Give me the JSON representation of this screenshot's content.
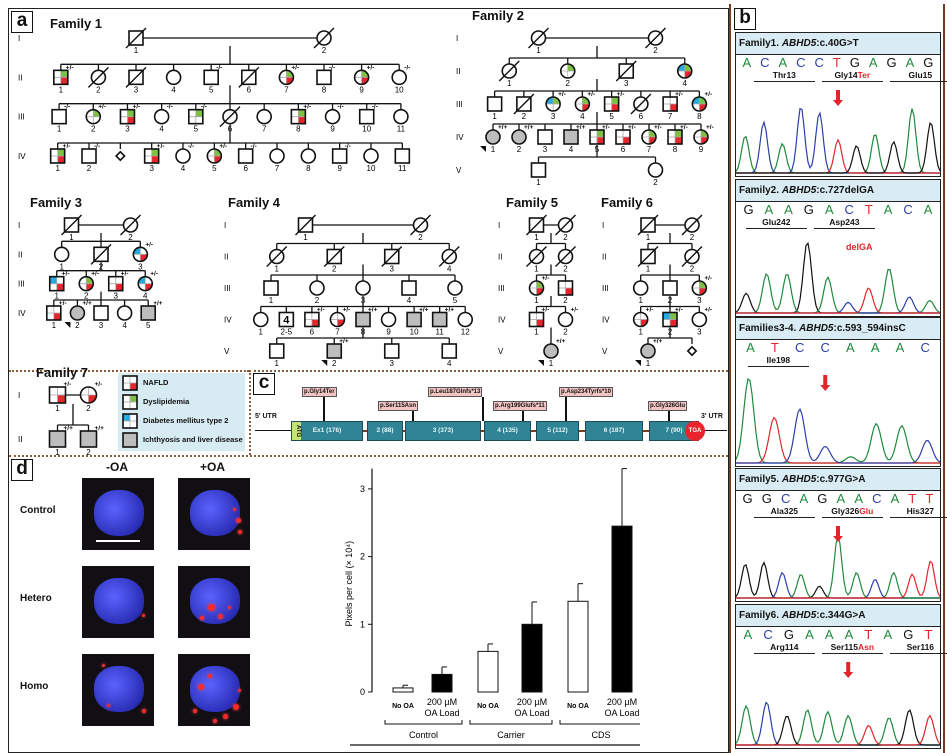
{
  "panels": {
    "a": "a",
    "b": "b",
    "c": "c",
    "d": "d"
  },
  "generation_labels": [
    "I",
    "II",
    "III",
    "IV",
    "V"
  ],
  "colors": {
    "nafld": "#e8242c",
    "dyslipidemia": "#7dc142",
    "diabetes": "#27aae1",
    "ichthyosis": "#bdbdbd",
    "exon": "#2f8595",
    "legend_bg": "#d7ebf2"
  },
  "families": [
    {
      "title": "Family 1",
      "generations": [
        [
          {
            "n": "1",
            "s": "m",
            "d": 1
          },
          {
            "n": "2",
            "s": "f",
            "d": 1
          }
        ],
        [
          {
            "n": "1",
            "s": "m",
            "q": "gr",
            "gt": "+/-"
          },
          {
            "n": "2",
            "s": "f",
            "d": 1
          },
          {
            "n": "3",
            "s": "m",
            "d": 1
          },
          {
            "n": "4",
            "s": "f"
          },
          {
            "n": "5",
            "s": "m",
            "gt": "-/-"
          },
          {
            "n": "6",
            "s": "m",
            "d": 1
          },
          {
            "n": "7",
            "s": "f",
            "q": "gr",
            "gt": "+/-"
          },
          {
            "n": "8",
            "s": "m",
            "gt": "-/-"
          },
          {
            "n": "9",
            "s": "f",
            "q": "gr",
            "gt": "+/-"
          },
          {
            "n": "10",
            "s": "f",
            "gt": "-/-"
          }
        ],
        [
          {
            "n": "1",
            "s": "m",
            "gt": "-/-"
          },
          {
            "n": "2",
            "s": "f",
            "q": "g",
            "gt": "+/-"
          },
          {
            "n": "3",
            "s": "m",
            "q": "gr",
            "gt": "+/-"
          },
          {
            "n": "4",
            "s": "f",
            "gt": "-/-"
          },
          {
            "n": "5",
            "s": "m",
            "q": "g",
            "gt": "-/-"
          },
          {
            "n": "6",
            "s": "f",
            "d": 1
          },
          {
            "n": "7",
            "s": "f"
          },
          {
            "n": "8",
            "s": "m",
            "q": "gr",
            "gt": "+/-"
          },
          {
            "n": "9",
            "s": "f",
            "gt": "-/-"
          },
          {
            "n": "10",
            "s": "m",
            "gt": "-/-"
          },
          {
            "n": "11",
            "s": "f"
          }
        ],
        [
          {
            "n": "1",
            "s": "m",
            "q": "gr",
            "gt": "+/-"
          },
          {
            "n": "2",
            "s": "m",
            "gt": "-/-"
          },
          {
            "n": "",
            "s": "u"
          },
          {
            "n": "3",
            "s": "m",
            "q": "gr",
            "gt": "+/-"
          },
          {
            "n": "4",
            "s": "f",
            "gt": "-/-"
          },
          {
            "n": "5",
            "s": "f",
            "q": "gr",
            "gt": "+/-"
          },
          {
            "n": "6",
            "s": "m",
            "gt": "-/-"
          },
          {
            "n": "7",
            "s": "f"
          },
          {
            "n": "8",
            "s": "f"
          },
          {
            "n": "9",
            "s": "m",
            "gt": "-/-"
          },
          {
            "n": "10",
            "s": "f"
          },
          {
            "n": "11",
            "s": "m"
          }
        ]
      ]
    },
    {
      "title": "Family 2",
      "generations": [
        [
          {
            "n": "1",
            "s": "f",
            "d": 1
          },
          {
            "n": "2",
            "s": "f",
            "d": 1
          }
        ],
        [
          {
            "n": "1",
            "s": "f",
            "d": 1
          },
          {
            "n": "2",
            "s": "f",
            "q": "g"
          },
          {
            "n": "3",
            "s": "m",
            "d": 1
          },
          {
            "n": "4",
            "s": "f",
            "q": "bgr"
          }
        ],
        [
          {
            "n": "1",
            "s": "m"
          },
          {
            "n": "2",
            "s": "m",
            "d": 1
          },
          {
            "n": "3",
            "s": "f",
            "q": "bg",
            "gt": "+/-"
          },
          {
            "n": "4",
            "s": "f",
            "q": "gr",
            "gt": "+/-"
          },
          {
            "n": "5",
            "s": "m",
            "q": "gr",
            "gt": "+/-"
          },
          {
            "n": "6",
            "s": "f",
            "d": 1
          },
          {
            "n": "7",
            "s": "m",
            "q": "r",
            "gt": "+/-"
          },
          {
            "n": "8",
            "s": "f",
            "q": "bgr",
            "gt": "+/-"
          }
        ],
        [
          {
            "n": "1",
            "s": "f",
            "a": 1,
            "gt": "+/+",
            "p": 1
          },
          {
            "n": "2",
            "s": "f",
            "a": 1,
            "gt": "+/+"
          },
          {
            "n": "3",
            "s": "m"
          },
          {
            "n": "4",
            "s": "m",
            "a": 1,
            "gt": "+/+"
          },
          {
            "n": "5",
            "s": "m",
            "q": "gr",
            "gt": "+/-"
          },
          {
            "n": "6",
            "s": "m",
            "q": "r",
            "gt": "+/-"
          },
          {
            "n": "7",
            "s": "f",
            "q": "gr",
            "gt": "+/-"
          },
          {
            "n": "8",
            "s": "m",
            "q": "gr",
            "gt": "+/-"
          },
          {
            "n": "9",
            "s": "f",
            "q": "gr",
            "gt": "+/-"
          }
        ],
        [
          {
            "n": "1",
            "s": "m"
          },
          {
            "n": "2",
            "s": "f"
          }
        ]
      ]
    },
    {
      "title": "Family 3",
      "generations": [
        [
          {
            "n": "1",
            "s": "m",
            "d": 1
          },
          {
            "n": "2",
            "s": "f",
            "d": 1
          }
        ],
        [
          {
            "n": "1",
            "s": "f"
          },
          {
            "n": "2",
            "s": "m",
            "d": 1
          },
          {
            "n": "3",
            "s": "f",
            "q": "br",
            "gt": "+/-"
          }
        ],
        [
          {
            "n": "1",
            "s": "m",
            "q": "br",
            "gt": "+/-"
          },
          {
            "n": "2",
            "s": "f",
            "q": "gr",
            "gt": "+/-"
          },
          {
            "n": "3",
            "s": "m",
            "q": "r",
            "gt": "+/-"
          },
          {
            "n": "4",
            "s": "f",
            "q": "br",
            "gt": "+/-"
          }
        ],
        [
          {
            "n": "1",
            "s": "m",
            "q": "r",
            "gt": "+/-"
          },
          {
            "n": "2",
            "s": "f",
            "a": 1,
            "gt": "+/+",
            "p": 1
          },
          {
            "n": "3",
            "s": "m"
          },
          {
            "n": "4",
            "s": "f"
          },
          {
            "n": "5",
            "s": "m",
            "a": 1,
            "gt": "+/+"
          }
        ]
      ]
    },
    {
      "title": "Family 4",
      "generations": [
        [
          {
            "n": "1",
            "s": "m",
            "d": 1
          },
          {
            "n": "2",
            "s": "f",
            "d": 1
          }
        ],
        [
          {
            "n": "1",
            "s": "f",
            "d": 1
          },
          {
            "n": "2",
            "s": "m",
            "d": 1
          },
          {
            "n": "3",
            "s": "m",
            "d": 1
          },
          {
            "n": "4",
            "s": "f",
            "d": 1
          }
        ],
        [
          {
            "n": "1",
            "s": "m"
          },
          {
            "n": "2",
            "s": "f"
          },
          {
            "n": "3",
            "s": "f"
          },
          {
            "n": "4",
            "s": "m"
          },
          {
            "n": "5",
            "s": "f"
          }
        ],
        [
          {
            "n": "1",
            "s": "f"
          },
          {
            "n": "2-5",
            "s": "m",
            "c": "4"
          },
          {
            "n": "6",
            "s": "m",
            "q": "r",
            "gt": "+/-"
          },
          {
            "n": "7",
            "s": "f",
            "q": "r",
            "gt": "+/-"
          },
          {
            "n": "8",
            "s": "m",
            "a": 1,
            "gt": "+/+"
          },
          {
            "n": "9",
            "s": "f"
          },
          {
            "n": "10",
            "s": "m",
            "a": 1,
            "gt": "+/+"
          },
          {
            "n": "11",
            "s": "m",
            "a": 1,
            "gt": "+/+"
          },
          {
            "n": "12",
            "s": "f"
          }
        ],
        [
          {
            "n": "1",
            "s": "m"
          },
          {
            "n": "2",
            "s": "m",
            "a": 1,
            "gt": "+/+",
            "p": 1
          },
          {
            "n": "3",
            "s": "m"
          },
          {
            "n": "4",
            "s": "m"
          }
        ]
      ]
    },
    {
      "title": "Family 5",
      "generations": [
        [
          {
            "n": "1",
            "s": "m",
            "d": 1
          },
          {
            "n": "2",
            "s": "f",
            "d": 1
          }
        ],
        [
          {
            "n": "1",
            "s": "f",
            "d": 1
          },
          {
            "n": "2",
            "s": "f",
            "d": 1
          }
        ],
        [
          {
            "n": "1",
            "s": "f",
            "q": "gr",
            "gt": "+/-"
          },
          {
            "n": "2",
            "s": "m",
            "q": "r"
          }
        ],
        [
          {
            "n": "1",
            "s": "m",
            "q": "r",
            "gt": "+/-"
          },
          {
            "n": "2",
            "s": "f",
            "gt": "+/-"
          }
        ],
        [
          {
            "n": "1",
            "s": "f",
            "a": 1,
            "gt": "+/+",
            "p": 1
          }
        ]
      ]
    },
    {
      "title": "Family 6",
      "generations": [
        [
          {
            "n": "1",
            "s": "m",
            "d": 1
          },
          {
            "n": "2",
            "s": "f",
            "d": 1
          }
        ],
        [
          {
            "n": "1",
            "s": "m",
            "d": 1
          },
          {
            "n": "2",
            "s": "f",
            "d": 1
          }
        ],
        [
          {
            "n": "1",
            "s": "f"
          },
          {
            "n": "2",
            "s": "m"
          },
          {
            "n": "3",
            "s": "f",
            "q": "gr",
            "gt": "+/-"
          }
        ],
        [
          {
            "n": "1",
            "s": "f",
            "q": "r",
            "gt": "+/-"
          },
          {
            "n": "2",
            "s": "m",
            "q": "bgr",
            "gt": "+/-"
          },
          {
            "n": "3",
            "s": "f",
            "gt": "+/-"
          }
        ],
        [
          {
            "n": "1",
            "s": "f",
            "a": 1,
            "gt": "+/+",
            "p": 1
          },
          {
            "n": "",
            "s": "u"
          }
        ]
      ]
    },
    {
      "title": "Family 7",
      "generations": [
        [
          {
            "n": "1",
            "s": "m",
            "q": "r",
            "gt": "+/-"
          },
          {
            "n": "2",
            "s": "f",
            "q": "r",
            "gt": "+/-"
          }
        ],
        [
          {
            "n": "1",
            "s": "m",
            "a": 1,
            "gt": "+/+"
          },
          {
            "n": "2",
            "s": "m",
            "a": 1,
            "gt": "+/+"
          }
        ]
      ]
    }
  ],
  "legend": [
    {
      "label": "NAFLD",
      "q": "r"
    },
    {
      "label": "Dyslipidemia",
      "q": "g"
    },
    {
      "label": "Diabetes mellitus type 2",
      "q": "b"
    },
    {
      "label": "Ichthyosis and liver disease",
      "q": "a"
    }
  ],
  "gene": {
    "utr5": "5' UTR",
    "utr3": "3' UTR",
    "start": "ATG",
    "stop": "TGA",
    "exons": [
      "Ex1 (176)",
      "2 (88)",
      "3 (373)",
      "4 (135)",
      "5 (112)",
      "6 (187)",
      "7 (90)"
    ],
    "mutations": [
      "p.Gly14Ter",
      "p.Ser115Asn",
      "p.Leu187Glnfs*13",
      "p.Arg199Glufs*11",
      "p.Asp234Tyrfs*10",
      "p.Gly326Glu"
    ]
  },
  "sequencing": [
    {
      "family": "Family1.",
      "gene": "ABHD5",
      "variant": ":c.40G>T",
      "bases": "ACACCTGAGAG",
      "mutbase": 5,
      "codons": [
        {
          "text": "Thr13"
        },
        {
          "text": "Gly14",
          "mut": "Ter"
        },
        {
          "text": "Glu15"
        }
      ]
    },
    {
      "family": "Family2.",
      "gene": "ABHD5",
      "variant": ":c.727delGA",
      "bases": "GAAGACTACA",
      "codons": [
        {
          "text": "Glu242"
        },
        {
          "text": "Asp243"
        }
      ],
      "annotation": "delGA"
    },
    {
      "family": "Families3-4.",
      "gene": "ABHD5",
      "variant": ":c.593_594insC",
      "bases": "ATCCAAAC",
      "codons": [
        {
          "text": "Ile198"
        }
      ]
    },
    {
      "family": "Family5.",
      "gene": "ABHD5",
      "variant": ":c.977G>A",
      "bases": "GGCAGAACATT",
      "codons": [
        {
          "text": "Ala325"
        },
        {
          "text": "Gly326",
          "mut": "Glu"
        },
        {
          "text": "His327"
        }
      ]
    },
    {
      "family": "Family6.",
      "gene": "ABHD5",
      "variant": ":c.344G>A",
      "bases": "ACGAAATAGT",
      "codons": [
        {
          "text": "Arg114"
        },
        {
          "text": "Ser115",
          "mut": "Asn"
        },
        {
          "text": "Ser116"
        }
      ]
    }
  ],
  "microscopy": {
    "columns": [
      "-OA",
      "+OA"
    ],
    "rows": [
      "Control",
      "Hetero",
      "Homo"
    ]
  },
  "chart_data": {
    "type": "bar",
    "title": "",
    "ylabel": "Pixels per cell (× 10⁴)",
    "ylim": [
      0,
      3.3
    ],
    "yticks": [
      0,
      1,
      2,
      3
    ],
    "groups": [
      "Control",
      "Carrier",
      "CDS"
    ],
    "conditions": [
      "No OA",
      "200 µM OA Load"
    ],
    "series": [
      {
        "name": "No OA",
        "fill": "#ffffff",
        "values": [
          0.06,
          0.6,
          1.34
        ],
        "errors": [
          0.04,
          0.11,
          0.26
        ]
      },
      {
        "name": "200 µM OA Load",
        "fill": "#000000",
        "values": [
          0.26,
          1.0,
          2.45
        ],
        "errors": [
          0.11,
          0.33,
          0.85
        ]
      }
    ],
    "error_bars": "upper"
  }
}
